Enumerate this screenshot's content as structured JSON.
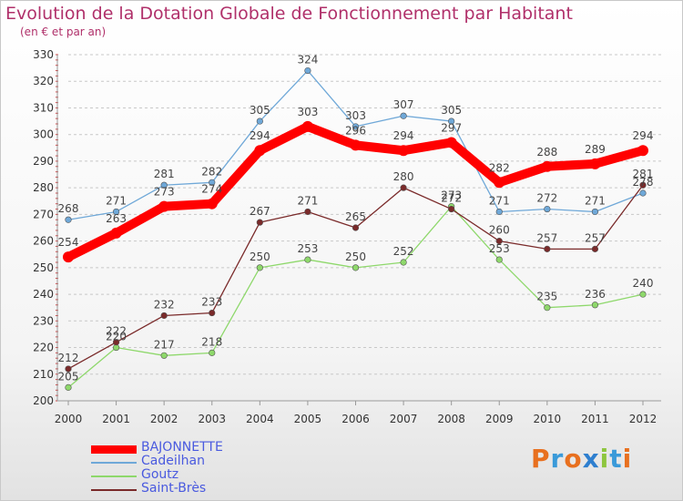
{
  "title": "Evolution de la Dotation Globale de Fonctionnement par Habitant",
  "subtitle": "(en € et par an)",
  "brand": "Proxiti",
  "brand_colors": [
    "#e8701f",
    "#3a9ad9",
    "#e8701f",
    "#2e7fcf",
    "#8ec63f",
    "#3a9ad9",
    "#e8701f"
  ],
  "chart_data": {
    "type": "line",
    "title": "Evolution de la Dotation Globale de Fonctionnement par Habitant",
    "subtitle": "(en € et par an)",
    "x": [
      "2000",
      "2001",
      "2002",
      "2003",
      "2004",
      "2005",
      "2006",
      "2007",
      "2008",
      "2009",
      "2010",
      "2011",
      "2012"
    ],
    "ylim": [
      200,
      330
    ],
    "yticks": [
      200,
      210,
      220,
      230,
      240,
      250,
      260,
      270,
      280,
      290,
      300,
      310,
      320,
      330
    ],
    "grid": "horizontal dashed",
    "legend_position": "bottom-left",
    "series": [
      {
        "name": "BAJONNETTE",
        "color": "#ff0000",
        "values": [
          254,
          263,
          273,
          274,
          294,
          303,
          296,
          294,
          297,
          282,
          288,
          289,
          294
        ]
      },
      {
        "name": "Cadeilhan",
        "color": "#6fa8d8",
        "values": [
          268,
          271,
          281,
          282,
          305,
          324,
          303,
          307,
          305,
          271,
          272,
          271,
          278
        ]
      },
      {
        "name": "Goutz",
        "color": "#8ed86b",
        "values": [
          205,
          220,
          217,
          218,
          250,
          253,
          250,
          252,
          273,
          253,
          235,
          236,
          240
        ]
      },
      {
        "name": "Saint-Brès",
        "color": "#7a2a2a",
        "values": [
          212,
          222,
          232,
          233,
          267,
          271,
          265,
          280,
          272,
          260,
          257,
          257,
          281
        ]
      }
    ]
  }
}
